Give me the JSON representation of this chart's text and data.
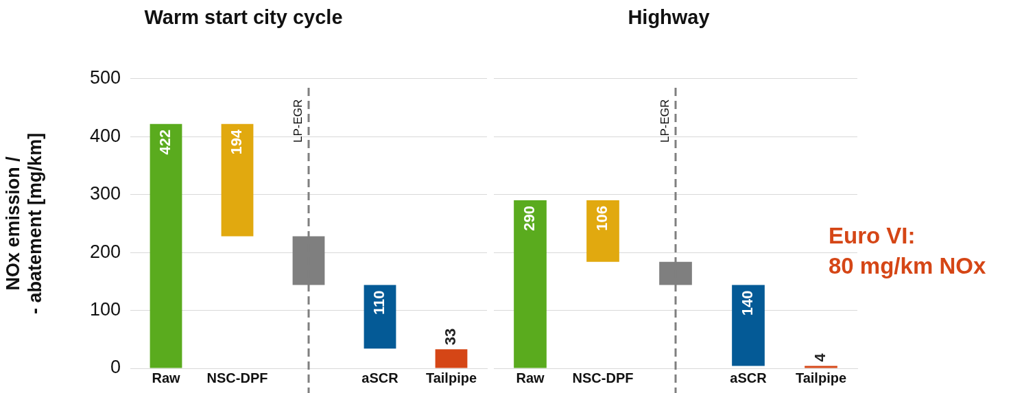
{
  "chart_data": [
    {
      "type": "bar",
      "title": "Warm start city cycle",
      "ylabel": "NOx emission /\n- abatement [mg/km]",
      "categories": [
        "Raw",
        "NSC-DPF",
        "LP-EGR",
        "aSCR",
        "Tailpipe"
      ],
      "values": [
        422,
        194,
        84,
        110,
        33
      ],
      "base": [
        0,
        228,
        144,
        34,
        0
      ],
      "colors": [
        "#5aab1e",
        "#e1a90f",
        "#7f7f7f",
        "#045a96",
        "#d54616"
      ],
      "value_labels": [
        "422",
        "194",
        null,
        "110",
        "33"
      ],
      "ylim": [
        0,
        500
      ],
      "yticks": [
        0,
        100,
        200,
        300,
        400,
        500
      ],
      "grid": "y",
      "legend": false,
      "ref_lines": [
        {
          "axis": "x",
          "value": "LP-EGR",
          "color": "#7f7f7f",
          "line_style": "dashed"
        }
      ]
    },
    {
      "type": "bar",
      "title": "Highway",
      "categories": [
        "Raw",
        "NSC-DPF",
        "LP-EGR",
        "aSCR",
        "Tailpipe"
      ],
      "values": [
        290,
        106,
        40,
        140,
        4
      ],
      "base": [
        0,
        184,
        144,
        4,
        0
      ],
      "colors": [
        "#5aab1e",
        "#e1a90f",
        "#7f7f7f",
        "#045a96",
        "#d54616"
      ],
      "value_labels": [
        "290",
        "106",
        null,
        "140",
        "4"
      ],
      "ylim": [
        0,
        500
      ],
      "yticks": [
        0,
        100,
        200,
        300,
        400,
        500
      ],
      "grid": "y",
      "legend": false,
      "tick_labels": "x",
      "ref_lines": [
        {
          "axis": "x",
          "value": "LP-EGR",
          "color": "#7f7f7f",
          "line_style": "dashed"
        }
      ],
      "annotations": [
        "Euro VI:\n80 mg/km NOx"
      ]
    }
  ]
}
